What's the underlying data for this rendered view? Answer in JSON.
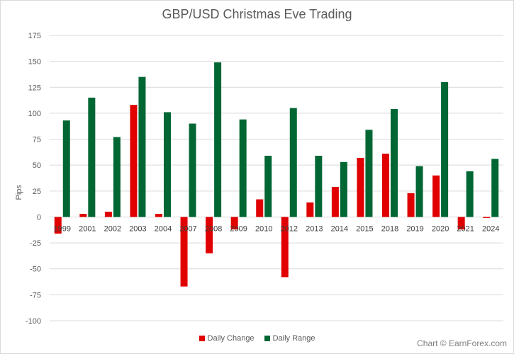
{
  "chart_data": {
    "type": "bar",
    "title": "GBP/USD Christmas Eve Trading",
    "xlabel": "",
    "ylabel": "Pips",
    "ylim": [
      -100,
      175
    ],
    "yticks": [
      175,
      150,
      125,
      100,
      75,
      50,
      25,
      0,
      -25,
      -50,
      -75,
      -100
    ],
    "grid": true,
    "legend_position": "bottom",
    "categories": [
      "1999",
      "2001",
      "2002",
      "2003",
      "2004",
      "2007",
      "2008",
      "2009",
      "2010",
      "2012",
      "2013",
      "2014",
      "2015",
      "2018",
      "2019",
      "2020",
      "2021",
      "2024"
    ],
    "series": [
      {
        "name": "Daily Change",
        "color": "#e00000",
        "values": [
          -16,
          3,
          5,
          108,
          3,
          -67,
          -35,
          -12,
          17,
          -58,
          14,
          29,
          57,
          61,
          23,
          40,
          -12,
          -1
        ]
      },
      {
        "name": "Daily Range",
        "color": "#006633",
        "values": [
          93,
          115,
          77,
          135,
          101,
          90,
          149,
          94,
          59,
          105,
          59,
          53,
          84,
          104,
          49,
          130,
          44,
          56
        ]
      }
    ],
    "credit": "Chart © EarnForex.com"
  }
}
